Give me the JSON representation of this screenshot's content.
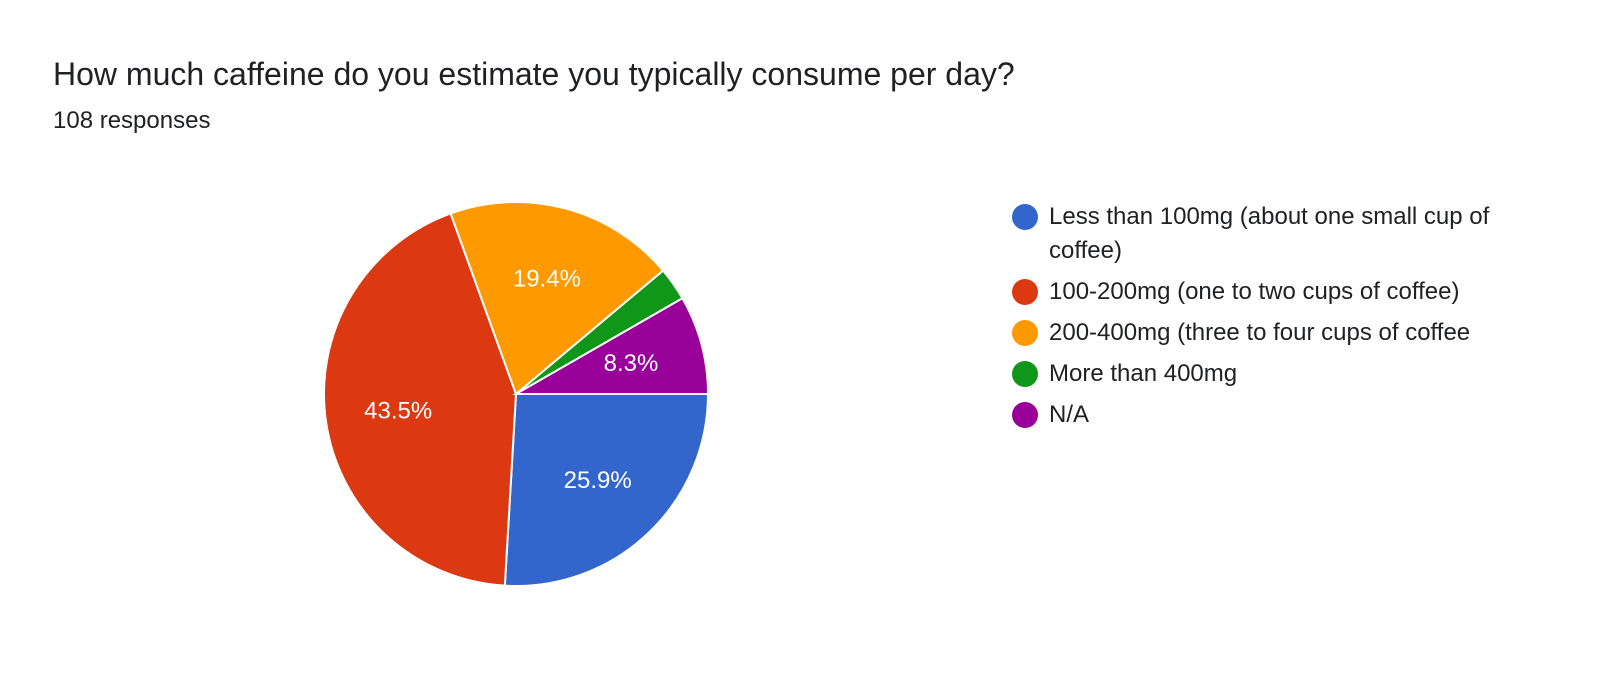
{
  "question": {
    "title": "How much caffeine do you estimate you typically consume per day?",
    "responses": "108 responses"
  },
  "chart_data": {
    "type": "pie",
    "title": "How much caffeine do you estimate you typically consume per day?",
    "slices": [
      {
        "label": "Less than 100mg (about one small cup of coffee)",
        "value": 25.9,
        "display": "25.9%",
        "color": "#3366cc"
      },
      {
        "label": "100-200mg (one to two cups of coffee)",
        "value": 43.5,
        "display": "43.5%",
        "color": "#dc3912"
      },
      {
        "label": "200-400mg (three to four cups of coffee",
        "value": 19.4,
        "display": "19.4%",
        "color": "#ff9900"
      },
      {
        "label": "More than 400mg",
        "value": 2.8,
        "display": "",
        "color": "#109618"
      },
      {
        "label": "N/A",
        "value": 8.3,
        "display": "8.3%",
        "color": "#990099"
      }
    ],
    "legend_position": "right"
  }
}
